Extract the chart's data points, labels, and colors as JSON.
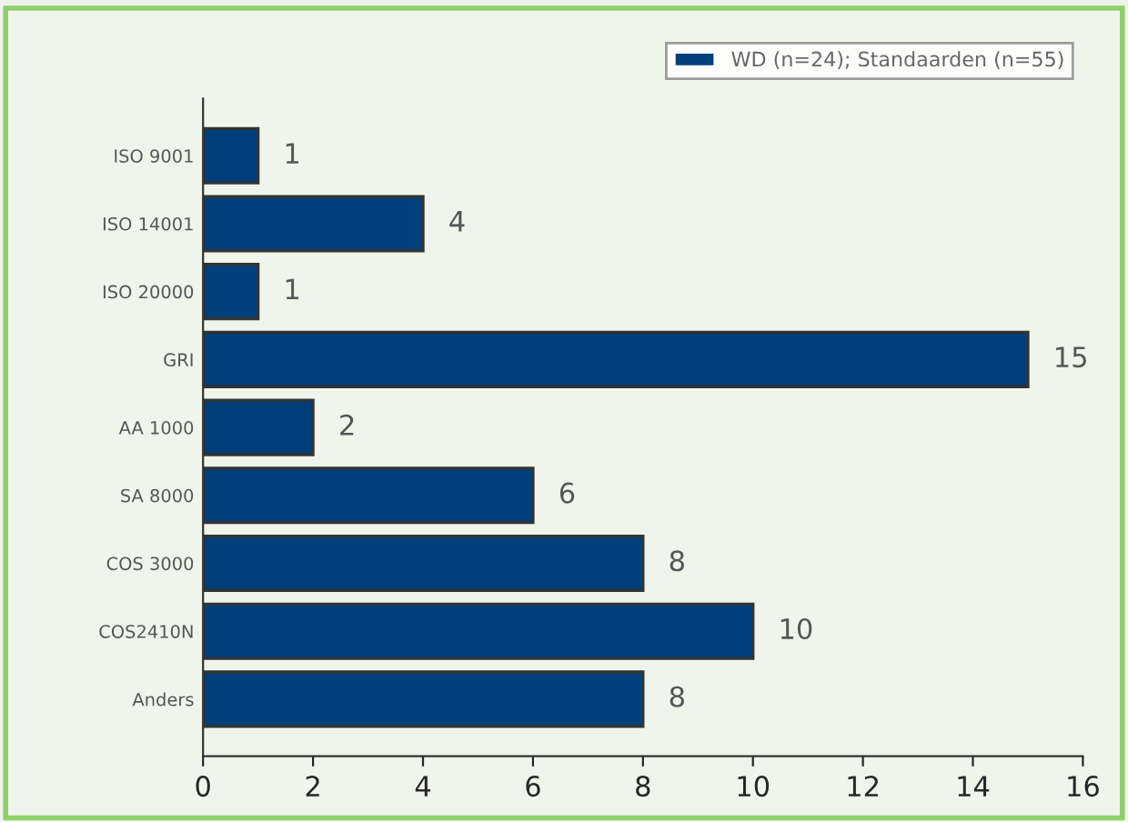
{
  "chart_data": {
    "type": "bar",
    "orientation": "horizontal",
    "categories": [
      "ISO 9001",
      "ISO 14001",
      "ISO 20000",
      "GRI",
      "AA 1000",
      "SA 8000",
      "COS 3000",
      "COS2410N",
      "Anders"
    ],
    "series": [
      {
        "name": "WD (n=24); Standaarden (n=55)",
        "color": "#003f7a",
        "values": [
          1,
          4,
          1,
          15,
          2,
          6,
          8,
          10,
          8
        ]
      }
    ],
    "xlim": [
      0,
      16
    ],
    "xticks": [
      0,
      2,
      4,
      6,
      8,
      10,
      12,
      14,
      16
    ],
    "data_labels": true,
    "legend": "top right",
    "grid": false
  }
}
